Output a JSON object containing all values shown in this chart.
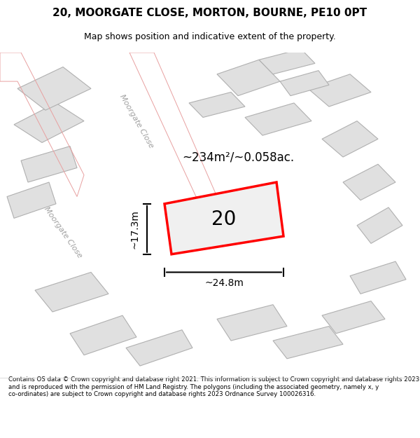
{
  "title": "20, MOORGATE CLOSE, MORTON, BOURNE, PE10 0PT",
  "subtitle": "Map shows position and indicative extent of the property.",
  "footer": "Contains OS data © Crown copyright and database right 2021. This information is subject to Crown copyright and database rights 2023 and is reproduced with the permission of HM Land Registry. The polygons (including the associated geometry, namely x, y co-ordinates) are subject to Crown copyright and database rights 2023 Ordnance Survey 100026316.",
  "bg_color": "#f5f5f5",
  "map_bg": "#ffffff",
  "area_label": "~234m²/~0.058ac.",
  "width_label": "~24.8m",
  "height_label": "~17.3m",
  "plot_number": "20",
  "red_color": "#ff0000",
  "gray_color": "#d0d0d0",
  "line_color": "#c8a0a0",
  "road_label1": "Moorgate Close",
  "road_label2": "Moorgate Close"
}
